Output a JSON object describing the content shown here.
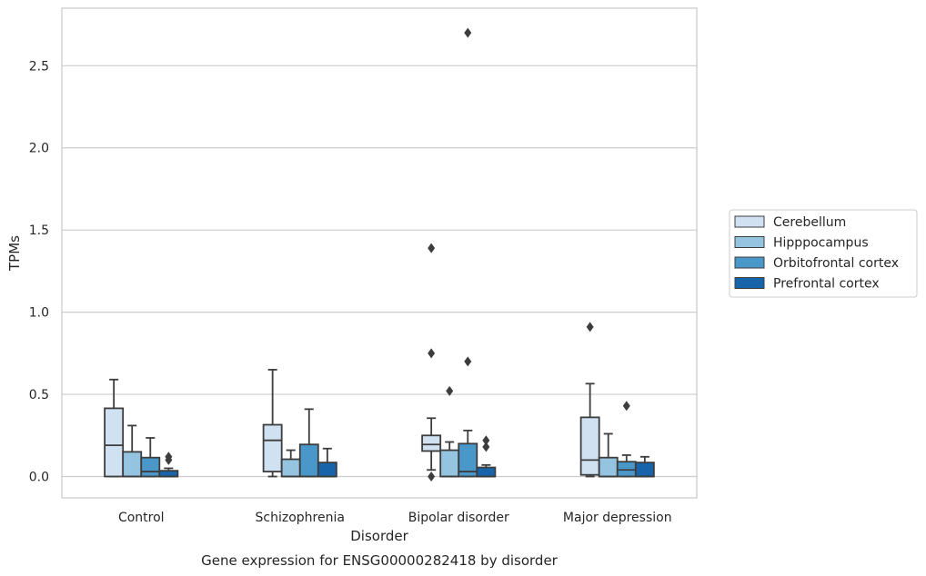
{
  "chart_data": {
    "type": "box",
    "title": "",
    "caption": "Gene expression for ENSG00000282418 by disorder",
    "xlabel": "Disorder",
    "ylabel": "TPMs",
    "ylim": [
      -0.13,
      2.85
    ],
    "yticks": [
      "0.0",
      "0.5",
      "1.0",
      "1.5",
      "2.0",
      "2.5"
    ],
    "ytick_values": [
      0,
      0.5,
      1.0,
      1.5,
      2.0,
      2.5
    ],
    "grid": true,
    "legend_position": "right",
    "categories": [
      "Control",
      "Schizophrenia",
      "Bipolar disorder",
      "Major depression"
    ],
    "series": [
      {
        "name": "Cerebellum",
        "color": "#d0e1f2",
        "boxes": [
          {
            "q1": 0.0,
            "median": 0.19,
            "q3": 0.415,
            "whisker_low": 0.0,
            "whisker_high": 0.59,
            "outliers": []
          },
          {
            "q1": 0.03,
            "median": 0.22,
            "q3": 0.315,
            "whisker_low": 0.0,
            "whisker_high": 0.65,
            "outliers": []
          },
          {
            "q1": 0.155,
            "median": 0.195,
            "q3": 0.25,
            "whisker_low": 0.04,
            "whisker_high": 0.355,
            "outliers": [
              0.0,
              0.75,
              1.39
            ]
          },
          {
            "q1": 0.01,
            "median": 0.1,
            "q3": 0.36,
            "whisker_low": 0.0,
            "whisker_high": 0.565,
            "outliers": [
              0.91
            ]
          }
        ]
      },
      {
        "name": "Hipppocampus",
        "color": "#94c4df",
        "boxes": [
          {
            "q1": 0.0,
            "median": 0.0,
            "q3": 0.15,
            "whisker_low": 0.0,
            "whisker_high": 0.31,
            "outliers": []
          },
          {
            "q1": 0.0,
            "median": 0.0,
            "q3": 0.105,
            "whisker_low": 0.0,
            "whisker_high": 0.16,
            "outliers": []
          },
          {
            "q1": 0.0,
            "median": 0.0,
            "q3": 0.16,
            "whisker_low": 0.0,
            "whisker_high": 0.21,
            "outliers": [
              0.52
            ]
          },
          {
            "q1": 0.0,
            "median": 0.0,
            "q3": 0.115,
            "whisker_low": 0.0,
            "whisker_high": 0.26,
            "outliers": []
          }
        ]
      },
      {
        "name": "Orbitofrontal cortex",
        "color": "#4a98c9",
        "boxes": [
          {
            "q1": 0.0,
            "median": 0.03,
            "q3": 0.115,
            "whisker_low": 0.0,
            "whisker_high": 0.235,
            "outliers": []
          },
          {
            "q1": 0.0,
            "median": 0.0,
            "q3": 0.195,
            "whisker_low": 0.0,
            "whisker_high": 0.41,
            "outliers": []
          },
          {
            "q1": 0.0,
            "median": 0.03,
            "q3": 0.2,
            "whisker_low": 0.0,
            "whisker_high": 0.28,
            "outliers": [
              0.7,
              2.7
            ]
          },
          {
            "q1": 0.0,
            "median": 0.04,
            "q3": 0.09,
            "whisker_low": 0.0,
            "whisker_high": 0.13,
            "outliers": [
              0.43
            ]
          }
        ]
      },
      {
        "name": "Prefrontal cortex",
        "color": "#1764ab",
        "boxes": [
          {
            "q1": 0.0,
            "median": 0.0,
            "q3": 0.035,
            "whisker_low": 0.0,
            "whisker_high": 0.05,
            "outliers": [
              0.1,
              0.12
            ]
          },
          {
            "q1": 0.0,
            "median": 0.0,
            "q3": 0.085,
            "whisker_low": 0.0,
            "whisker_high": 0.17,
            "outliers": []
          },
          {
            "q1": 0.0,
            "median": 0.0,
            "q3": 0.055,
            "whisker_low": 0.0,
            "whisker_high": 0.07,
            "outliers": [
              0.18,
              0.22
            ]
          },
          {
            "q1": 0.0,
            "median": 0.0,
            "q3": 0.085,
            "whisker_low": 0.0,
            "whisker_high": 0.12,
            "outliers": []
          }
        ]
      }
    ]
  }
}
